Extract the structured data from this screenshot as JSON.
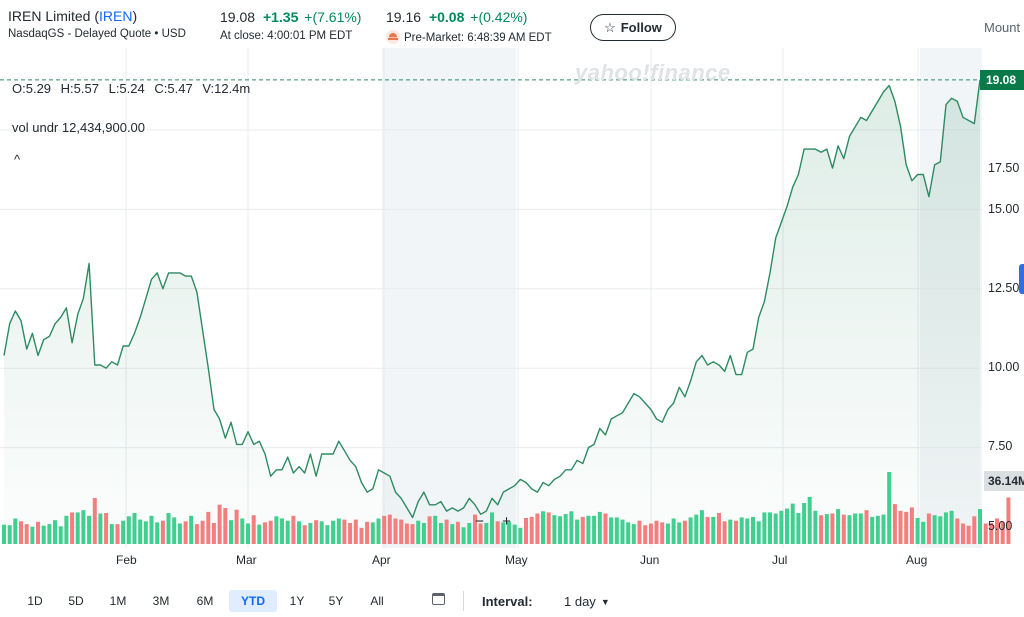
{
  "header": {
    "company": "IREN Limited",
    "ticker": "IREN",
    "exchange_line": "NasdaqGS - Delayed Quote • USD",
    "close_price": "19.08",
    "close_change": "+1.35",
    "close_pct": "+(7.61%)",
    "close_time": "At close: 4:00:01 PM EDT",
    "pre_price": "19.16",
    "pre_change": "+0.08",
    "pre_pct": "+(0.42%)",
    "pre_time": "Pre-Market: 6:48:39 AM EDT",
    "follow_label": "Follow",
    "follow_icon": "star-icon",
    "partial_right_text": "Mount"
  },
  "legend": {
    "open": "O:5.29",
    "high": "H:5.57",
    "low": "L:5.24",
    "close": "C:5.47",
    "volume": "V:12.4m",
    "vol_undr_label": "vol undr",
    "vol_undr_value": "12,434,900.00",
    "collapse_icon": "chevron-up-icon"
  },
  "watermark": "yahoo!finance",
  "price_tag": "19.08",
  "volume_tag": "36.14M",
  "zoom": {
    "minus": "−",
    "plus": "+"
  },
  "chart_data": {
    "type": "line",
    "title": "",
    "xlabel": "",
    "ylabel": "",
    "y_ticks": [
      "5.00",
      "7.50",
      "10.00",
      "12.50",
      "15.00",
      "17.50"
    ],
    "ylim": [
      4.5,
      20.5
    ],
    "x_ticks": [
      "Feb",
      "Mar",
      "Apr",
      "May",
      "Jun",
      "Jul",
      "Aug"
    ],
    "line_color": "#2e8a63",
    "up_volume_color": "#3fcf8e",
    "down_volume_color": "#f47e7e",
    "last_price": 19.08,
    "grid": true,
    "series": [
      {
        "values": [
          10.4,
          11.4,
          11.8,
          11.5,
          10.6,
          11.1,
          10.4,
          10.9,
          11.0,
          11.4,
          11.6,
          11.9,
          10.8,
          11.7,
          12.2,
          13.3,
          10.1,
          10.1,
          10.0,
          10.2,
          10.1,
          10.7,
          10.7,
          11.1,
          11.6,
          12.2,
          12.8,
          13.0,
          12.5,
          13.0,
          13.0,
          13.0,
          12.9,
          12.9,
          12.4,
          11.2,
          10.0,
          8.7,
          8.4,
          7.8,
          8.3,
          7.6,
          7.6,
          8.0,
          7.6,
          7.7,
          7.3,
          6.6,
          6.8,
          6.8,
          7.2,
          6.7,
          6.9,
          6.7,
          7.3,
          6.6,
          7.3,
          7.3,
          7.3,
          7.7,
          7.4,
          7.1,
          6.9,
          6.4,
          6.1,
          6.2,
          6.8,
          6.7,
          6.6,
          6.1,
          5.9,
          5.6,
          5.3,
          5.8,
          6.1,
          5.7,
          5.7,
          5.8,
          5.5,
          5.6,
          5.5,
          5.6,
          5.9,
          5.7,
          5.4,
          5.5,
          5.9,
          5.7,
          6.1,
          6.2,
          6.3,
          6.5,
          6.4,
          6.2,
          6.1,
          6.4,
          6.3,
          6.5,
          6.6,
          6.8,
          6.8,
          7.1,
          7.0,
          7.5,
          7.6,
          8.1,
          7.9,
          8.4,
          8.5,
          8.6,
          8.9,
          9.2,
          9.1,
          8.9,
          8.7,
          8.4,
          8.3,
          8.7,
          8.9,
          9.4,
          9.1,
          9.6,
          10.2,
          10.4,
          10.1,
          10.2,
          10.1,
          9.9,
          10.4,
          9.8,
          9.8,
          10.5,
          10.6,
          11.6,
          12.1,
          13.0,
          14.1,
          14.6,
          15.1,
          15.7,
          16.1,
          16.9,
          16.9,
          16.9,
          16.8,
          16.9,
          16.3,
          17.0,
          16.6,
          17.3,
          17.6,
          17.9,
          17.8,
          18.1,
          18.4,
          18.7,
          18.9,
          18.4,
          17.6,
          16.4,
          15.9,
          16.1,
          16.1,
          15.4,
          16.4,
          16.5,
          18.3,
          18.5,
          18.4,
          17.9,
          17.8,
          17.7,
          19.08
        ]
      }
    ],
    "volume_scale_max": 36.14,
    "volume_values": [
      3.5,
      3.4,
      4.6,
      4.1,
      3.6,
      3.1,
      4.0,
      3.3,
      3.6,
      4.3,
      3.2,
      5.1,
      5.7,
      5.7,
      6.1,
      5.1,
      8.3,
      5.5,
      5.6,
      3.6,
      3.6,
      4.2,
      5.0,
      5.6,
      4.4,
      4.1,
      5.1,
      3.9,
      4.2,
      5.6,
      4.8,
      3.7,
      4.1,
      5.1,
      3.6,
      4.2,
      5.8,
      3.8,
      7.1,
      6.5,
      4.3,
      6.2,
      4.6,
      3.7,
      5.2,
      3.5,
      3.9,
      4.2,
      5.0,
      4.6,
      4.2,
      5.1,
      4.1,
      3.4,
      3.8,
      4.3,
      4.1,
      3.4,
      4.2,
      4.6,
      4.4,
      3.8,
      4.4,
      2.9,
      4.0,
      3.9,
      4.6,
      5.1,
      5.3,
      4.6,
      4.4,
      3.7,
      3.6,
      4.2,
      3.8,
      5.0,
      5.1,
      3.8,
      4.4,
      3.6,
      4.0,
      3.0,
      3.8,
      5.3,
      3.7,
      3.8,
      5.7,
      4.1,
      3.9,
      4.0,
      3.5,
      2.9,
      4.7,
      4.9,
      5.5,
      5.9,
      5.7,
      5.2,
      5.0,
      5.4,
      5.9,
      4.4,
      4.9,
      5.1,
      5.1,
      5.8,
      5.5,
      4.8,
      4.8,
      4.4,
      3.9,
      3.6,
      4.2,
      3.4,
      3.7,
      4.2,
      3.9,
      3.7,
      4.6,
      3.9,
      4.2,
      4.8,
      5.3,
      6.1,
      4.9,
      4.9,
      5.6,
      4.1,
      4.4,
      4.2,
      4.8,
      4.6,
      4.9,
      4.1,
      5.7,
      5.7,
      5.5,
      6.0,
      6.4,
      7.3,
      5.6,
      7.4,
      8.5,
      6.0,
      5.2,
      5.4,
      5.5,
      6.3,
      5.3,
      5.2,
      5.5,
      5.5,
      6.1,
      4.9,
      5.1,
      5.3,
      13.0,
      7.2,
      6.0,
      5.8,
      6.6,
      4.7,
      4.0,
      5.5,
      5.2,
      5.0,
      5.7,
      6.0,
      4.6,
      3.7,
      3.3,
      5.0,
      6.3,
      3.7,
      3.8,
      4.6,
      4.0,
      8.4
    ]
  },
  "range_buttons": [
    "1D",
    "5D",
    "1M",
    "3M",
    "6M",
    "YTD",
    "1Y",
    "5Y",
    "All"
  ],
  "active_range": "YTD",
  "calendar_icon": "calendar-icon",
  "interval": {
    "label": "Interval:",
    "value": "1 day",
    "chevron": "chevron-down-icon"
  }
}
